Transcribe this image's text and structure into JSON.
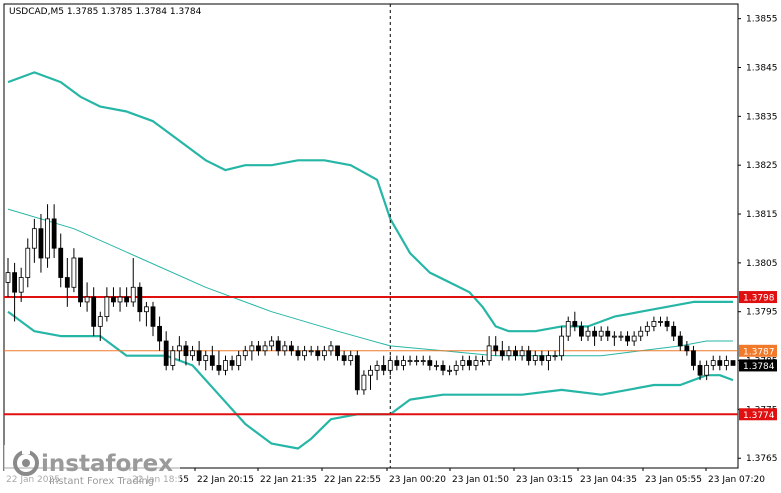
{
  "window": {
    "title": "USDCAD,M5  1.3785 1.3785 1.3784 1.3784",
    "symbol": "USDCAD",
    "timeframe": "M5"
  },
  "watermark": {
    "brand": "instaforex",
    "tagline": "Instant Forex Trading"
  },
  "colors": {
    "background": "#ffffff",
    "candles": "#000000",
    "bands": "#26b6a6",
    "level_lines": "#e01010",
    "current_price": "#000000",
    "orange_level": "#f07a2a"
  },
  "chart_data": {
    "type": "candlestick",
    "symbol": "USDCAD",
    "timeframe": "M5",
    "ohlc_header": {
      "open": 1.3785,
      "high": 1.3785,
      "low": 1.3784,
      "close": 1.3784
    },
    "ylim": [
      1.3763,
      1.3858
    ],
    "y_ticks": [
      "1.3855",
      "1.3845",
      "1.3835",
      "1.3825",
      "1.3815",
      "1.3805",
      "1.3795",
      "1.3785",
      "1.3775",
      "1.3765"
    ],
    "x_ticks": [
      "22 Jan 2025",
      "22 Jan 18:55",
      "22 Jan 20:15",
      "22 Jan 21:35",
      "22 Jan 22:55",
      "23 Jan 00:20",
      "23 Jan 01:50",
      "23 Jan 03:15",
      "23 Jan 04:35",
      "23 Jan 05:55",
      "23 Jan 07:20"
    ],
    "price_labels": [
      {
        "value": "1.3798",
        "kind": "red-line"
      },
      {
        "value": "1.3787",
        "kind": "orange-line"
      },
      {
        "value": "1.3784",
        "kind": "current"
      },
      {
        "value": "1.3774",
        "kind": "red-line"
      }
    ],
    "horizontal_lines": [
      {
        "price": 1.3798,
        "color": "#e01010"
      },
      {
        "price": 1.3787,
        "color": "#f07a2a"
      },
      {
        "price": 1.3774,
        "color": "#e01010"
      }
    ],
    "separator_time_index": 58,
    "bars_count": 111,
    "bollinger_upper": [
      [
        0,
        1.3842
      ],
      [
        4,
        1.3844
      ],
      [
        8,
        1.3842
      ],
      [
        11,
        1.3839
      ],
      [
        14,
        1.3837
      ],
      [
        18,
        1.3836
      ],
      [
        22,
        1.3834
      ],
      [
        26,
        1.383
      ],
      [
        30,
        1.3826
      ],
      [
        33,
        1.3824
      ],
      [
        36,
        1.3825
      ],
      [
        40,
        1.3825
      ],
      [
        44,
        1.3826
      ],
      [
        48,
        1.3826
      ],
      [
        52,
        1.3825
      ],
      [
        56,
        1.3822
      ],
      [
        58,
        1.3814
      ],
      [
        61,
        1.3807
      ],
      [
        64,
        1.3803
      ],
      [
        67,
        1.3801
      ],
      [
        70,
        1.3799
      ],
      [
        72,
        1.3796
      ],
      [
        74,
        1.3792
      ],
      [
        76,
        1.3791
      ],
      [
        80,
        1.3791
      ],
      [
        84,
        1.3792
      ],
      [
        88,
        1.3792
      ],
      [
        92,
        1.3794
      ],
      [
        96,
        1.3795
      ],
      [
        100,
        1.3796
      ],
      [
        104,
        1.3797
      ],
      [
        108,
        1.3797
      ],
      [
        110,
        1.3797
      ]
    ],
    "bollinger_middle": [
      [
        0,
        1.3816
      ],
      [
        10,
        1.3812
      ],
      [
        20,
        1.3806
      ],
      [
        30,
        1.38
      ],
      [
        40,
        1.3795
      ],
      [
        50,
        1.3791
      ],
      [
        58,
        1.3788
      ],
      [
        66,
        1.3787
      ],
      [
        74,
        1.3786
      ],
      [
        82,
        1.3786
      ],
      [
        90,
        1.3786
      ],
      [
        96,
        1.3787
      ],
      [
        102,
        1.3788
      ],
      [
        106,
        1.3789
      ],
      [
        110,
        1.3789
      ]
    ],
    "bollinger_lower": [
      [
        0,
        1.3795
      ],
      [
        4,
        1.3791
      ],
      [
        8,
        1.379
      ],
      [
        14,
        1.379
      ],
      [
        18,
        1.3786
      ],
      [
        24,
        1.3786
      ],
      [
        28,
        1.3784
      ],
      [
        32,
        1.3778
      ],
      [
        36,
        1.3772
      ],
      [
        40,
        1.3768
      ],
      [
        44,
        1.3767
      ],
      [
        46,
        1.3769
      ],
      [
        49,
        1.3773
      ],
      [
        53,
        1.3774
      ],
      [
        58,
        1.3774
      ],
      [
        61,
        1.3777
      ],
      [
        66,
        1.3778
      ],
      [
        72,
        1.3778
      ],
      [
        78,
        1.3778
      ],
      [
        84,
        1.3779
      ],
      [
        90,
        1.3778
      ],
      [
        94,
        1.3779
      ],
      [
        98,
        1.378
      ],
      [
        102,
        1.378
      ],
      [
        106,
        1.3782
      ],
      [
        108,
        1.3782
      ],
      [
        110,
        1.3781
      ]
    ],
    "candles": [
      [
        1.3801,
        1.3806,
        1.3798,
        1.3803
      ],
      [
        1.3803,
        1.3805,
        1.3793,
        1.3799
      ],
      [
        1.3799,
        1.3804,
        1.3797,
        1.3802
      ],
      [
        1.3802,
        1.381,
        1.38,
        1.3808
      ],
      [
        1.3808,
        1.3814,
        1.3805,
        1.3812
      ],
      [
        1.3812,
        1.3815,
        1.3803,
        1.3806
      ],
      [
        1.3806,
        1.3817,
        1.3804,
        1.3814
      ],
      [
        1.3814,
        1.3817,
        1.3806,
        1.3808
      ],
      [
        1.3808,
        1.3811,
        1.38,
        1.3802
      ],
      [
        1.3802,
        1.3806,
        1.3796,
        1.38
      ],
      [
        1.38,
        1.3808,
        1.3799,
        1.3806
      ],
      [
        1.3806,
        1.3806,
        1.3796,
        1.3797
      ],
      [
        1.3797,
        1.3801,
        1.3795,
        1.3798
      ],
      [
        1.3798,
        1.38,
        1.379,
        1.3792
      ],
      [
        1.3792,
        1.3795,
        1.3789,
        1.3794
      ],
      [
        1.3794,
        1.38,
        1.3793,
        1.3798
      ],
      [
        1.3798,
        1.38,
        1.3796,
        1.3797
      ],
      [
        1.3797,
        1.38,
        1.3795,
        1.3798
      ],
      [
        1.3798,
        1.38,
        1.3796,
        1.3797
      ],
      [
        1.3797,
        1.3806,
        1.3796,
        1.38
      ],
      [
        1.38,
        1.3801,
        1.3793,
        1.3795
      ],
      [
        1.3795,
        1.3797,
        1.3792,
        1.3796
      ],
      [
        1.3796,
        1.3797,
        1.379,
        1.3792
      ],
      [
        1.3792,
        1.3794,
        1.3787,
        1.3789
      ],
      [
        1.3789,
        1.3791,
        1.3783,
        1.3784
      ],
      [
        1.3784,
        1.3788,
        1.3783,
        1.3787
      ],
      [
        1.3787,
        1.379,
        1.3785,
        1.3788
      ],
      [
        1.3788,
        1.3789,
        1.3784,
        1.3786
      ],
      [
        1.3786,
        1.3788,
        1.3785,
        1.3787
      ],
      [
        1.3787,
        1.3789,
        1.3784,
        1.3785
      ],
      [
        1.3785,
        1.3787,
        1.3783,
        1.3786
      ],
      [
        1.3786,
        1.3788,
        1.3783,
        1.3784
      ],
      [
        1.3784,
        1.3787,
        1.3782,
        1.3783
      ],
      [
        1.3783,
        1.3786,
        1.3782,
        1.3785
      ],
      [
        1.3785,
        1.3786,
        1.3783,
        1.3784
      ],
      [
        1.3784,
        1.3787,
        1.3783,
        1.3786
      ],
      [
        1.3786,
        1.3788,
        1.3785,
        1.3787
      ],
      [
        1.3787,
        1.3789,
        1.3785,
        1.3788
      ],
      [
        1.3788,
        1.3789,
        1.3786,
        1.3787
      ],
      [
        1.3787,
        1.3789,
        1.3786,
        1.3788
      ],
      [
        1.3788,
        1.379,
        1.3787,
        1.3789
      ],
      [
        1.3789,
        1.379,
        1.3786,
        1.3787
      ],
      [
        1.3787,
        1.3789,
        1.3786,
        1.3788
      ],
      [
        1.3788,
        1.3789,
        1.3786,
        1.3787
      ],
      [
        1.3787,
        1.3788,
        1.3785,
        1.3786
      ],
      [
        1.3786,
        1.3788,
        1.3785,
        1.3787
      ],
      [
        1.3787,
        1.3788,
        1.3786,
        1.3787
      ],
      [
        1.3787,
        1.3788,
        1.3785,
        1.3786
      ],
      [
        1.3786,
        1.3788,
        1.3785,
        1.3787
      ],
      [
        1.3787,
        1.3789,
        1.3786,
        1.3788
      ],
      [
        1.3788,
        1.3788,
        1.3785,
        1.3786
      ],
      [
        1.3786,
        1.3787,
        1.3784,
        1.3785
      ],
      [
        1.3785,
        1.3787,
        1.3784,
        1.3786
      ],
      [
        1.3786,
        1.3787,
        1.3778,
        1.3779
      ],
      [
        1.3779,
        1.3783,
        1.3778,
        1.3782
      ],
      [
        1.3782,
        1.3784,
        1.3779,
        1.3783
      ],
      [
        1.3783,
        1.3785,
        1.3781,
        1.3784
      ],
      [
        1.3784,
        1.3786,
        1.3782,
        1.3783
      ],
      [
        1.3783,
        1.3786,
        1.3782,
        1.3785
      ],
      [
        1.3785,
        1.3786,
        1.3783,
        1.3784
      ],
      [
        1.3784,
        1.3786,
        1.3783,
        1.3785
      ],
      [
        1.3785,
        1.3786,
        1.3784,
        1.3785
      ],
      [
        1.3785,
        1.3786,
        1.3784,
        1.3785
      ],
      [
        1.3785,
        1.3786,
        1.3784,
        1.3785
      ],
      [
        1.3785,
        1.3786,
        1.3783,
        1.3784
      ],
      [
        1.3784,
        1.3785,
        1.3783,
        1.3784
      ],
      [
        1.3784,
        1.3785,
        1.3782,
        1.3783
      ],
      [
        1.3783,
        1.3784,
        1.3782,
        1.3783
      ],
      [
        1.3783,
        1.3785,
        1.3782,
        1.3784
      ],
      [
        1.3784,
        1.3786,
        1.3783,
        1.3785
      ],
      [
        1.3785,
        1.3786,
        1.3783,
        1.3784
      ],
      [
        1.3784,
        1.3786,
        1.3783,
        1.3785
      ],
      [
        1.3785,
        1.3786,
        1.3784,
        1.3785
      ],
      [
        1.3785,
        1.379,
        1.3784,
        1.3788
      ],
      [
        1.3788,
        1.379,
        1.3786,
        1.3787
      ],
      [
        1.3787,
        1.3789,
        1.3785,
        1.3786
      ],
      [
        1.3786,
        1.3788,
        1.3785,
        1.3787
      ],
      [
        1.3787,
        1.3788,
        1.3785,
        1.3786
      ],
      [
        1.3786,
        1.3788,
        1.3785,
        1.3787
      ],
      [
        1.3787,
        1.3788,
        1.3784,
        1.3785
      ],
      [
        1.3785,
        1.3787,
        1.3784,
        1.3786
      ],
      [
        1.3786,
        1.3787,
        1.3784,
        1.3785
      ],
      [
        1.3785,
        1.3787,
        1.3783,
        1.3786
      ],
      [
        1.3786,
        1.3787,
        1.3785,
        1.3786
      ],
      [
        1.3786,
        1.3792,
        1.3785,
        1.379
      ],
      [
        1.379,
        1.3794,
        1.3789,
        1.3793
      ],
      [
        1.3793,
        1.3795,
        1.3791,
        1.3792
      ],
      [
        1.3792,
        1.3793,
        1.3789,
        1.379
      ],
      [
        1.379,
        1.3792,
        1.3789,
        1.3791
      ],
      [
        1.3791,
        1.3792,
        1.3788,
        1.379
      ],
      [
        1.379,
        1.3792,
        1.3789,
        1.3791
      ],
      [
        1.3791,
        1.3792,
        1.3789,
        1.379
      ],
      [
        1.379,
        1.3791,
        1.3788,
        1.379
      ],
      [
        1.379,
        1.3791,
        1.3789,
        1.379
      ],
      [
        1.379,
        1.3791,
        1.3788,
        1.3789
      ],
      [
        1.3789,
        1.3791,
        1.3788,
        1.379
      ],
      [
        1.379,
        1.3792,
        1.3789,
        1.3791
      ],
      [
        1.3791,
        1.3793,
        1.379,
        1.3792
      ],
      [
        1.3792,
        1.3794,
        1.3791,
        1.3793
      ],
      [
        1.3793,
        1.3794,
        1.3792,
        1.3793
      ],
      [
        1.3793,
        1.3794,
        1.3791,
        1.3792
      ],
      [
        1.3792,
        1.3793,
        1.3789,
        1.379
      ],
      [
        1.379,
        1.3791,
        1.3787,
        1.3788
      ],
      [
        1.3788,
        1.3789,
        1.3786,
        1.3787
      ],
      [
        1.3787,
        1.3788,
        1.3783,
        1.3784
      ],
      [
        1.3784,
        1.3785,
        1.3781,
        1.3782
      ],
      [
        1.3782,
        1.3785,
        1.3781,
        1.3784
      ],
      [
        1.3784,
        1.3786,
        1.3783,
        1.3785
      ],
      [
        1.3785,
        1.3786,
        1.3783,
        1.3784
      ],
      [
        1.3784,
        1.3786,
        1.3783,
        1.3785
      ],
      [
        1.3785,
        1.3785,
        1.3784,
        1.3784
      ]
    ]
  }
}
